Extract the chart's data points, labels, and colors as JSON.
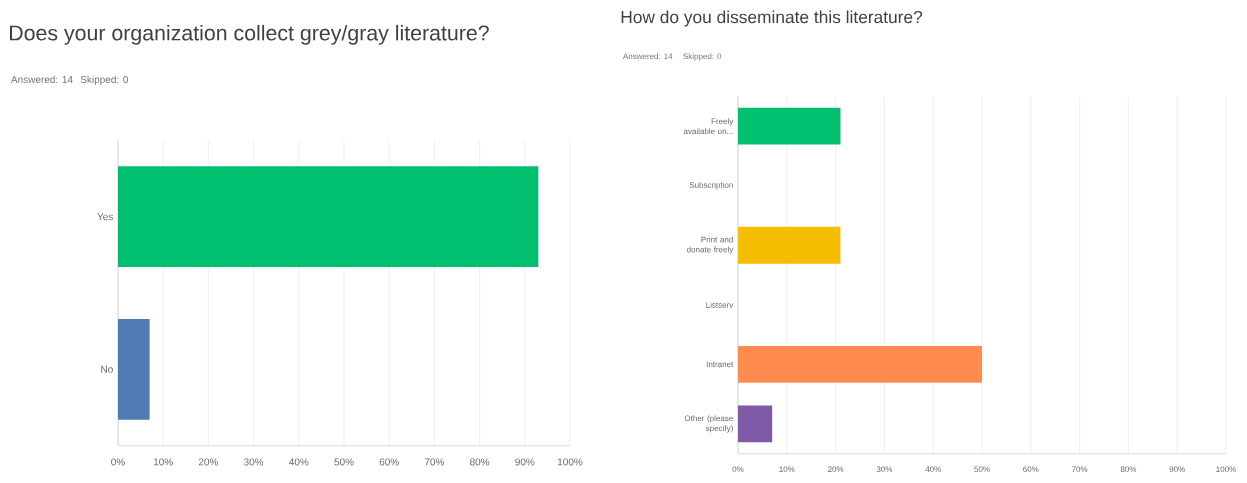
{
  "chart_data": [
    {
      "type": "bar",
      "orientation": "horizontal",
      "title": "Does your organization collect grey/gray literature?",
      "annotations": [
        "Answered: 14",
        "Skipped: 0"
      ],
      "categories": [
        "Yes",
        "No"
      ],
      "values": [
        93,
        7
      ],
      "colors": [
        "#00bf6f",
        "#507cb6"
      ],
      "xlim": [
        0,
        100
      ],
      "xticks": [
        {
          "value": 0,
          "label": "0%"
        },
        {
          "value": 10,
          "label": "10%"
        },
        {
          "value": 20,
          "label": "20%"
        },
        {
          "value": 30,
          "label": "30%"
        },
        {
          "value": 40,
          "label": "40%"
        },
        {
          "value": 50,
          "label": "50%"
        },
        {
          "value": 60,
          "label": "60%"
        },
        {
          "value": 70,
          "label": "70%"
        },
        {
          "value": 80,
          "label": "80%"
        },
        {
          "value": 90,
          "label": "90%"
        },
        {
          "value": 100,
          "label": "100%"
        }
      ],
      "grid": "x"
    },
    {
      "type": "bar",
      "orientation": "horizontal",
      "title": "How do you disseminate this literature?",
      "annotations": [
        "Answered: 14",
        "Skipped: 0"
      ],
      "categories": [
        "Freely available on...",
        "Subscription",
        "Print and donate freely",
        "Listserv",
        "Intranet",
        "Other (please specify)"
      ],
      "values": [
        21,
        0,
        21,
        0,
        50,
        7
      ],
      "colors": [
        "#00bf6f",
        "#00bf6f",
        "#f5be00",
        "#f5be00",
        "#ff8b4f",
        "#7d5ba6"
      ],
      "xlim": [
        0,
        100
      ],
      "xticks": [
        {
          "value": 0,
          "label": "0%"
        },
        {
          "value": 10,
          "label": "10%"
        },
        {
          "value": 20,
          "label": "20%"
        },
        {
          "value": 30,
          "label": "30%"
        },
        {
          "value": 40,
          "label": "40%"
        },
        {
          "value": 50,
          "label": "50%"
        },
        {
          "value": 60,
          "label": "60%"
        },
        {
          "value": 70,
          "label": "70%"
        },
        {
          "value": 80,
          "label": "80%"
        },
        {
          "value": 90,
          "label": "90%"
        },
        {
          "value": 100,
          "label": "100%"
        }
      ],
      "grid": "x"
    }
  ]
}
